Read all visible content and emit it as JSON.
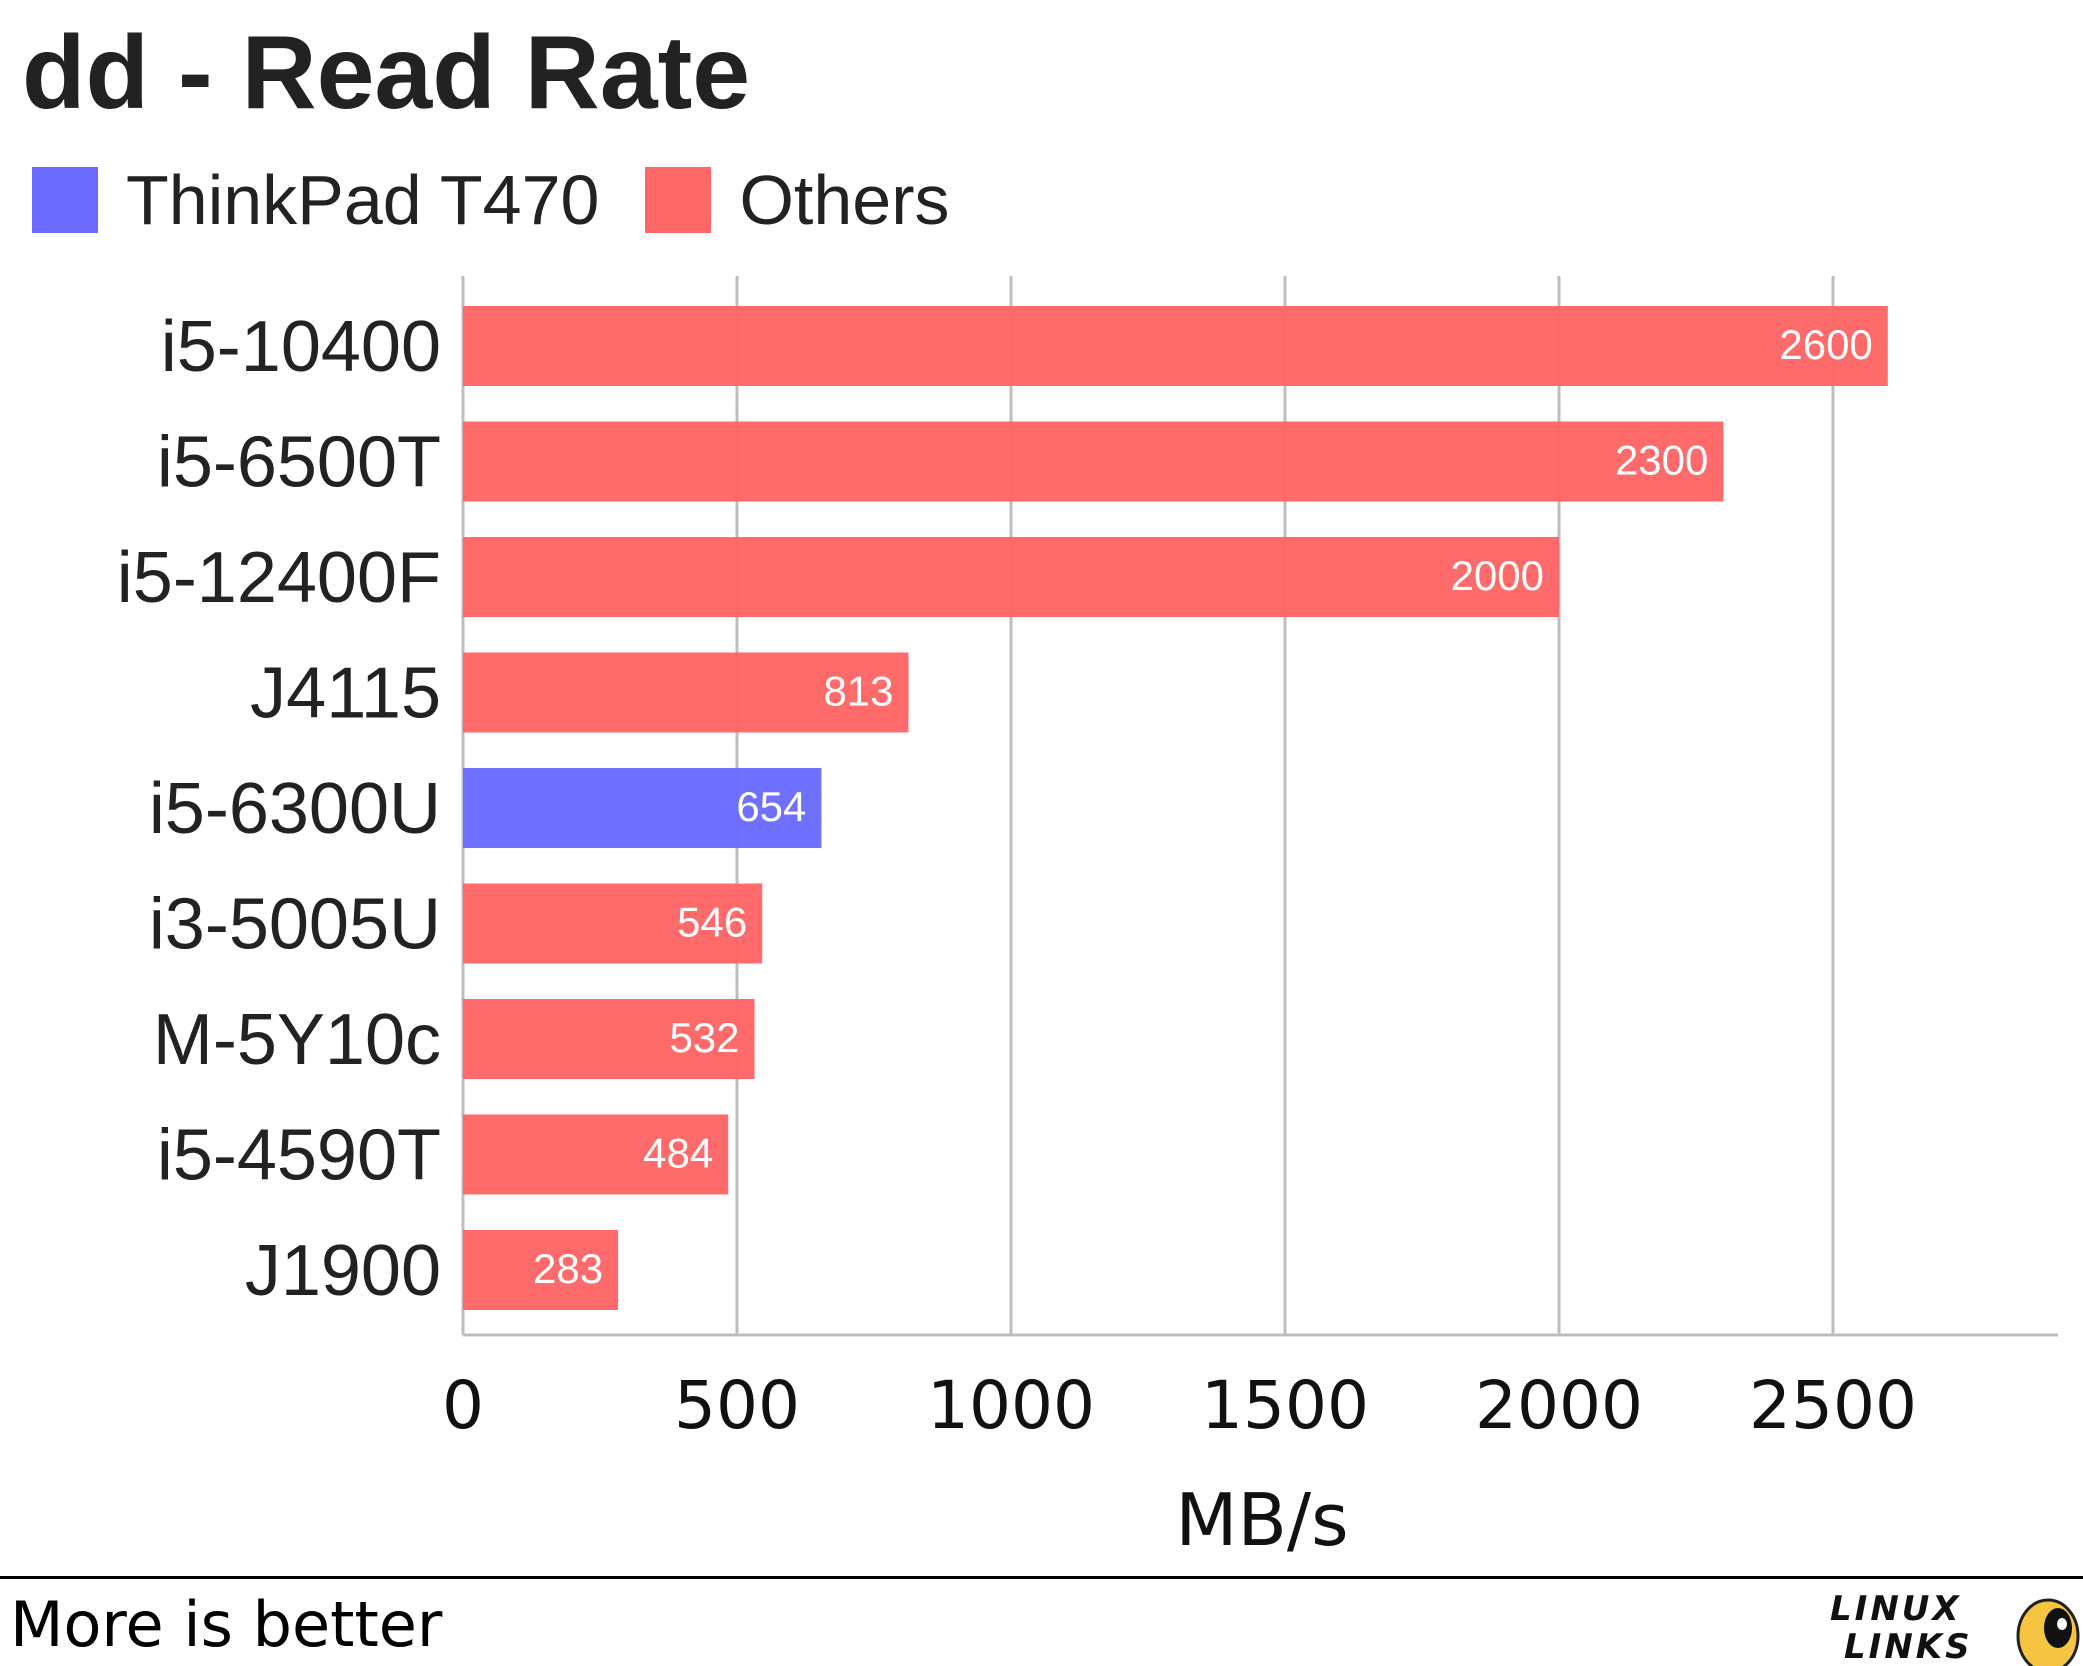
{
  "title": "dd - Read Rate",
  "legend": [
    {
      "label": "ThinkPad T470",
      "color": "#6b6bff"
    },
    {
      "label": "Others",
      "color": "#ff6666"
    }
  ],
  "footer": {
    "note": "More is better",
    "logo_text": [
      "LINUX",
      "LINKS"
    ]
  },
  "chart_data": {
    "type": "bar",
    "orientation": "horizontal",
    "title": "dd - Read Rate",
    "xlabel": "MB/s",
    "ylabel": "",
    "categories": [
      "i5-10400",
      "i5-6500T",
      "i5-12400F",
      "J4115",
      "i5-6300U",
      "i3-5005U",
      "M-5Y10c",
      "i5-4590T",
      "J1900"
    ],
    "values": [
      2600,
      2300,
      2000,
      813,
      654,
      546,
      532,
      484,
      283
    ],
    "groups": [
      "Others",
      "Others",
      "Others",
      "Others",
      "ThinkPad T470",
      "Others",
      "Others",
      "Others",
      "Others"
    ],
    "xlim": [
      0,
      2900
    ],
    "xticks": [
      0,
      500,
      1000,
      1500,
      2000,
      2500
    ],
    "grid": true,
    "legend_position": "top-left",
    "data_labels": true
  }
}
